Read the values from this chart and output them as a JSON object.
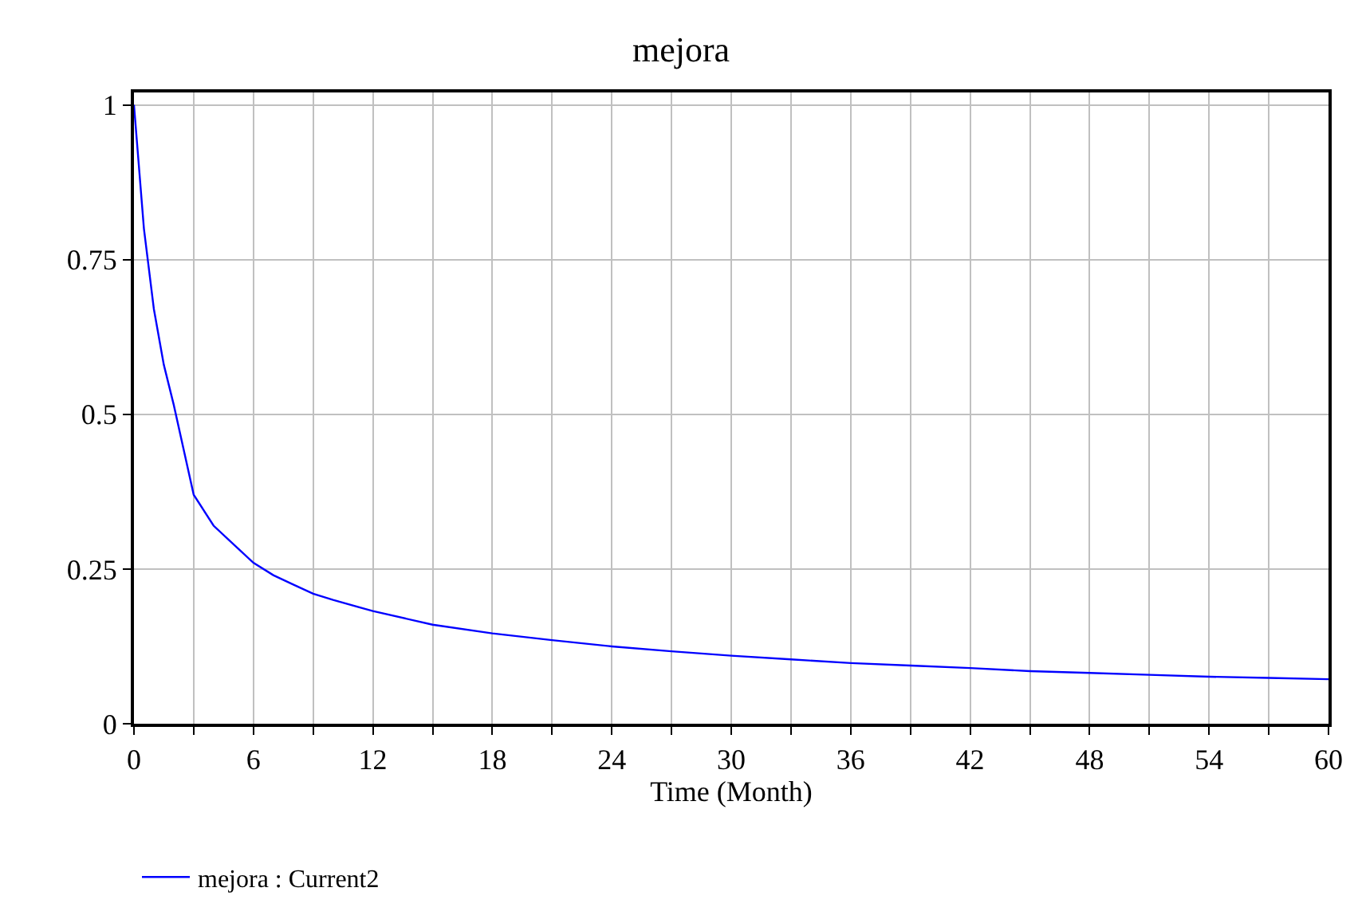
{
  "chart_data": {
    "type": "line",
    "title": "mejora",
    "xlabel": "Time (Month)",
    "x": [
      0,
      0.5,
      1,
      1.5,
      2,
      3,
      4,
      5,
      6,
      7,
      8,
      9,
      10,
      12,
      15,
      18,
      21,
      24,
      27,
      30,
      33,
      36,
      39,
      42,
      45,
      48,
      51,
      54,
      57,
      60
    ],
    "series": [
      {
        "name": "mejora : Current2",
        "color": "#0000ff",
        "values": [
          1.0,
          0.8,
          0.67,
          0.58,
          0.515,
          0.37,
          0.32,
          0.29,
          0.26,
          0.24,
          0.225,
          0.21,
          0.2,
          0.182,
          0.16,
          0.146,
          0.135,
          0.125,
          0.117,
          0.11,
          0.104,
          0.098,
          0.094,
          0.09,
          0.085,
          0.082,
          0.079,
          0.076,
          0.074,
          0.072
        ]
      }
    ],
    "xlim": [
      0,
      60
    ],
    "xticks": [
      0,
      {
        "value": 3,
        "label": null
      },
      6,
      {
        "value": 9,
        "label": null
      },
      12,
      {
        "value": 15,
        "label": null
      },
      18,
      {
        "value": 21,
        "label": null
      },
      24,
      {
        "value": 27,
        "label": null
      },
      30,
      {
        "value": 33,
        "label": null
      },
      36,
      {
        "value": 39,
        "label": null
      },
      42,
      {
        "value": 45,
        "label": null
      },
      48,
      {
        "value": 51,
        "label": null
      },
      54,
      {
        "value": 57,
        "label": null
      },
      60
    ],
    "ylim": [
      0,
      1.02
    ],
    "yticks": [
      0,
      0.25,
      0.5,
      0.75,
      1
    ],
    "grid": true,
    "legend": "bottom",
    "marker": "none",
    "line_style": "solid"
  }
}
